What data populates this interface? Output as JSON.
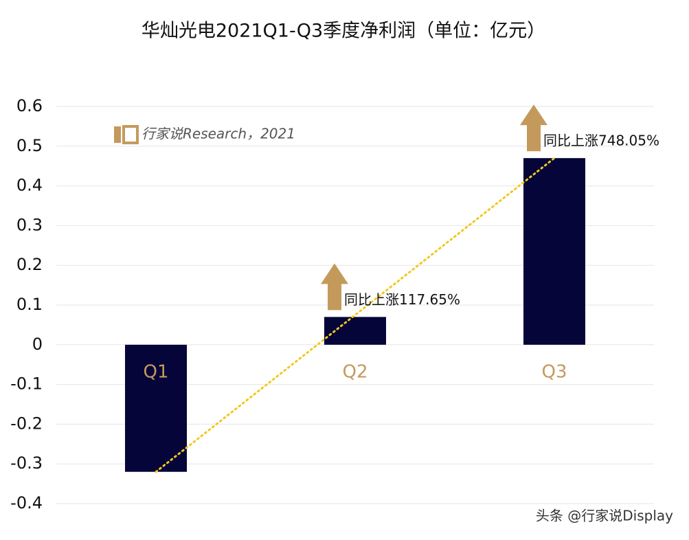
{
  "chart_data": {
    "type": "bar",
    "title": "华灿光电2021Q1-Q3季度净利润（单位：亿元）",
    "categories": [
      "Q1",
      "Q2",
      "Q3"
    ],
    "values": [
      -0.32,
      0.07,
      0.47
    ],
    "color": "#05053a",
    "category_label_color": "#c49a5c",
    "ylim": [
      -0.4,
      0.6
    ],
    "yticks": [
      -0.4,
      -0.3,
      -0.2,
      -0.1,
      0,
      0.1,
      0.2,
      0.3,
      0.4,
      0.5,
      0.6
    ],
    "grid": true,
    "trendline": true,
    "annotations": [
      {
        "category": "Q2",
        "text": "同比上涨117.65%"
      },
      {
        "category": "Q3",
        "text": "同比上涨748.05%"
      }
    ],
    "source": "行家说Research，2021",
    "watermark": "头条 @行家说Display"
  }
}
